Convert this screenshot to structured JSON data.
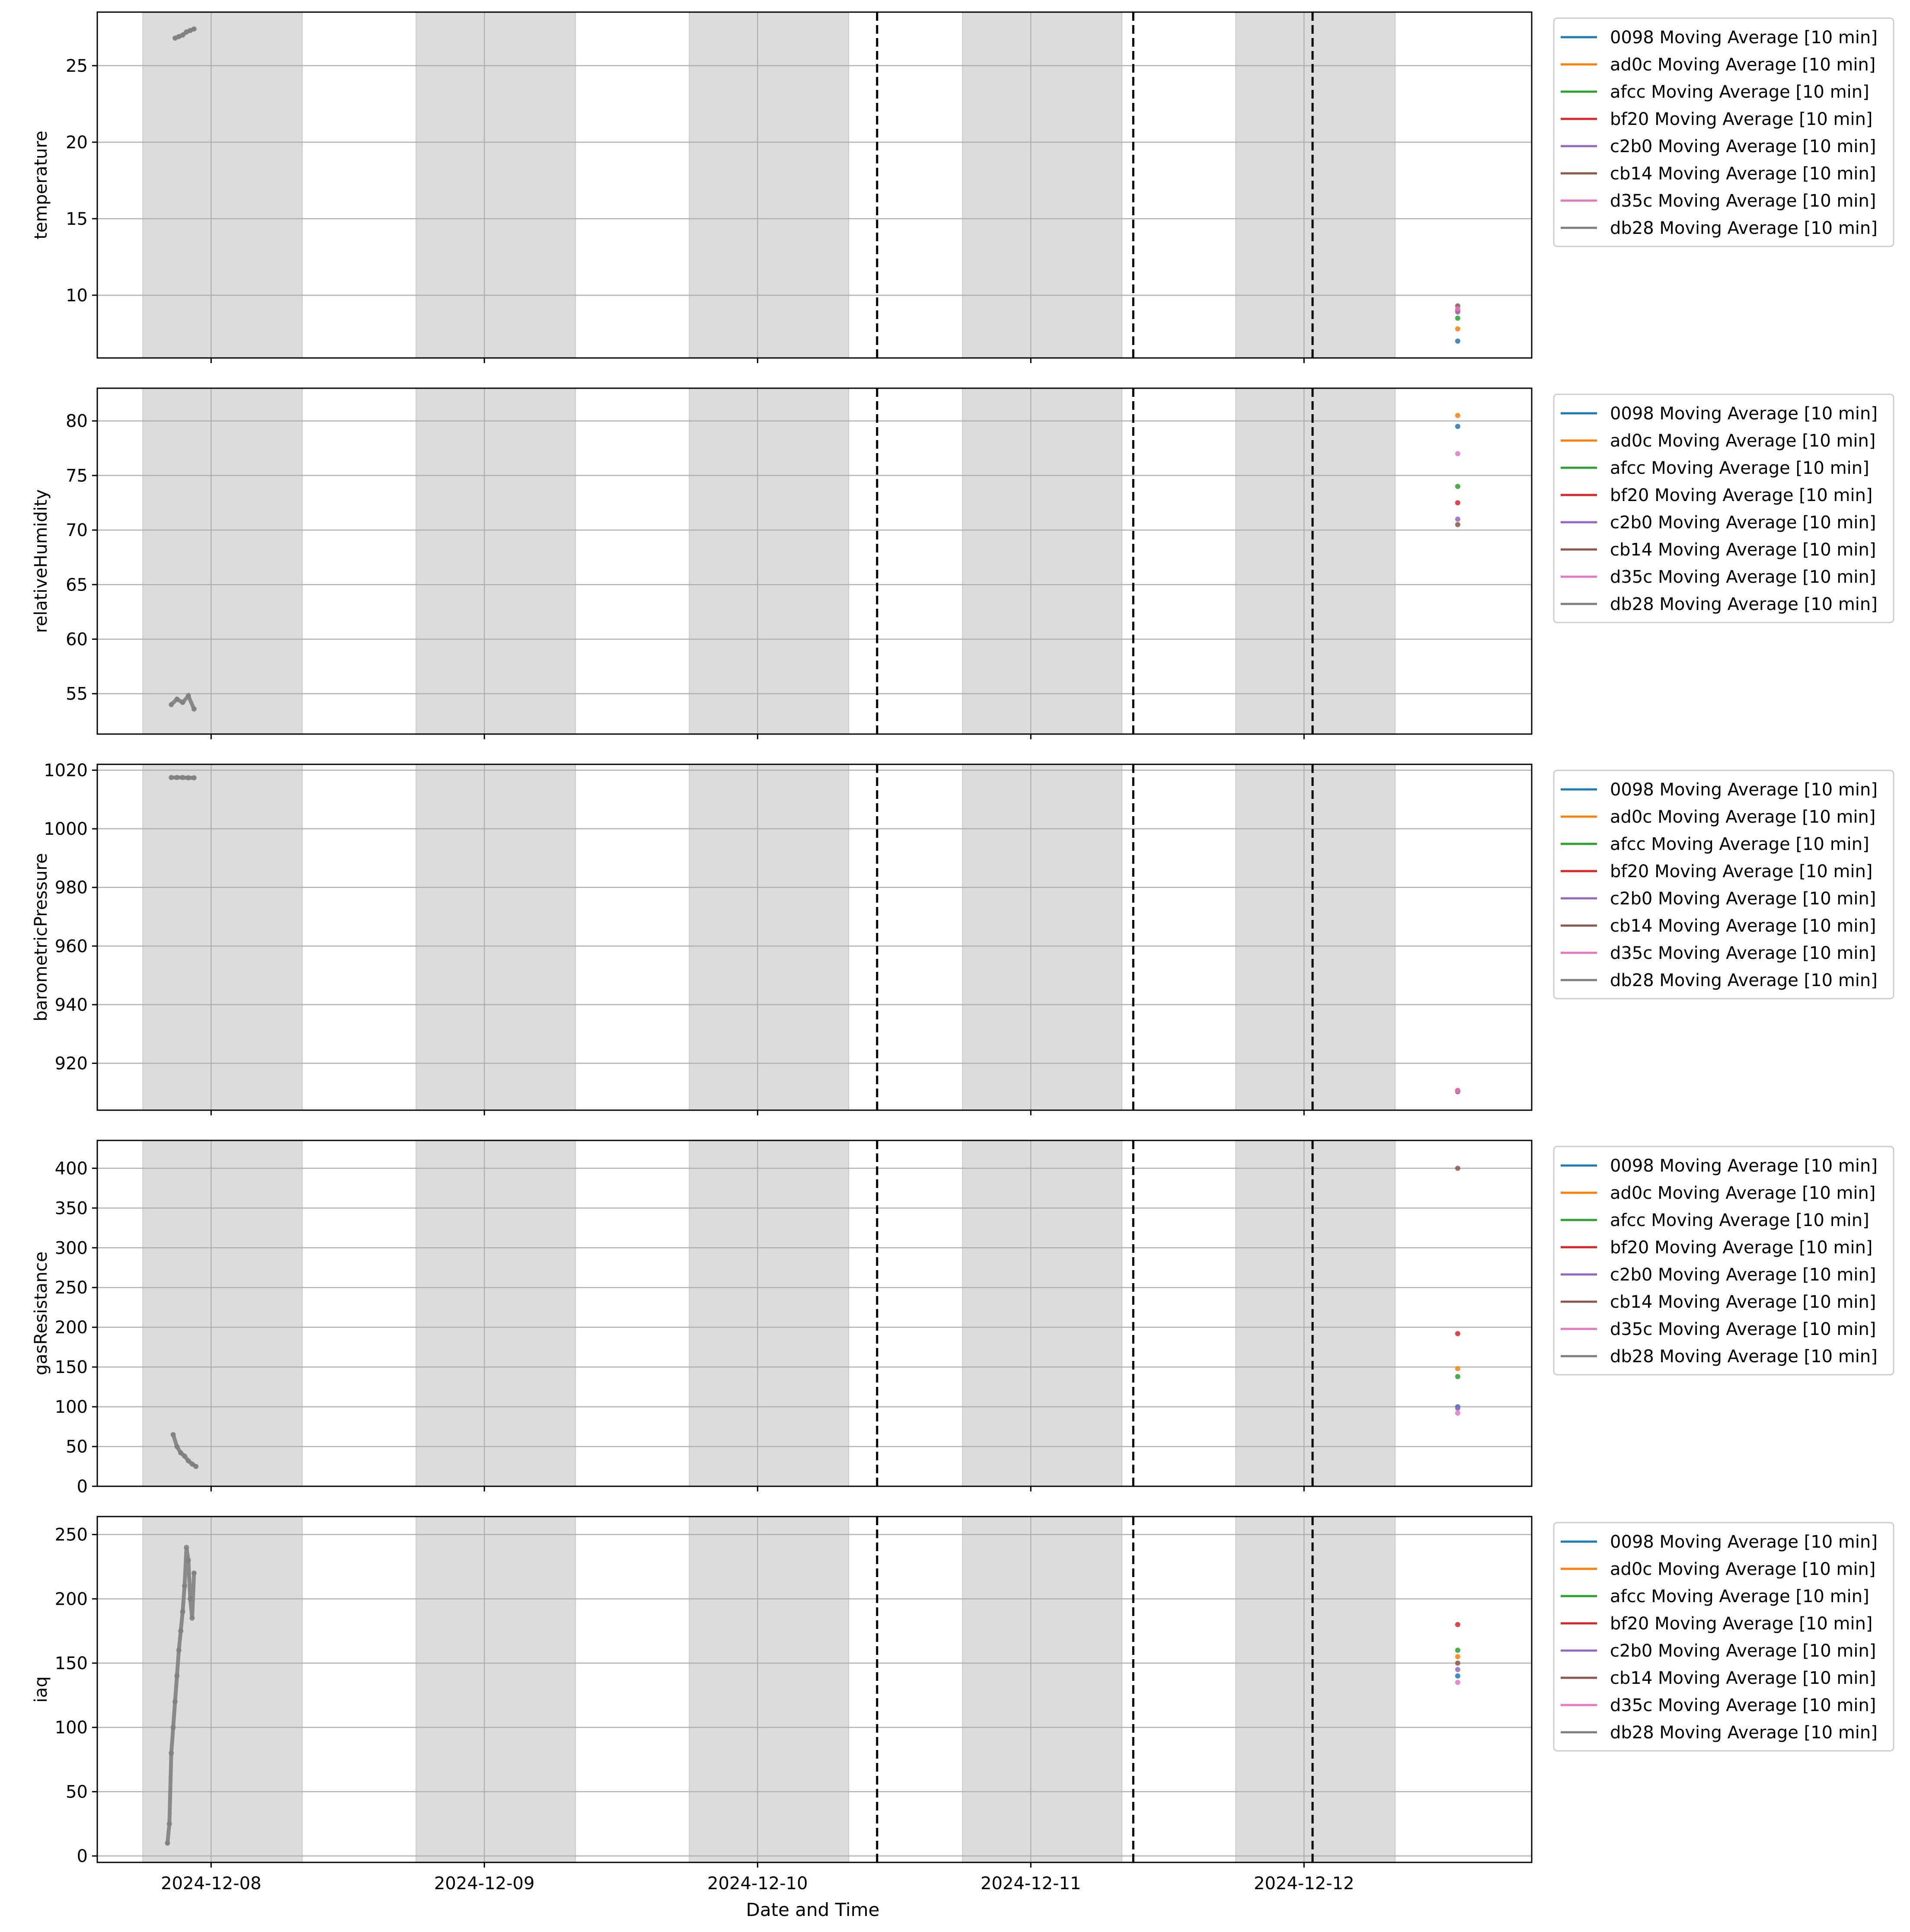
{
  "figure": {
    "xlabel": "Date and Time",
    "x_tick_labels": [
      "2024-12-08",
      "2024-12-09",
      "2024-12-10",
      "2024-12-11",
      "2024-12-12"
    ],
    "x_range": [
      "2024-12-07 14:00",
      "2024-12-12 20:00"
    ],
    "night_spans": [
      [
        "2024-12-07 18:00",
        "2024-12-08 08:00"
      ],
      [
        "2024-12-08 18:00",
        "2024-12-09 08:00"
      ],
      [
        "2024-12-09 18:00",
        "2024-12-10 08:00"
      ],
      [
        "2024-12-10 18:00",
        "2024-12-11 08:00"
      ],
      [
        "2024-12-11 18:00",
        "2024-12-12 08:00"
      ]
    ],
    "event_lines": [
      "2024-12-10 10:30",
      "2024-12-11 09:00",
      "2024-12-12 00:45"
    ],
    "legend_position": "outside upper right",
    "grid": true
  },
  "series_meta": [
    {
      "id": "0098",
      "label": "0098 Moving Average [10 min]",
      "color": "#1f77b4"
    },
    {
      "id": "ad0c",
      "label": "ad0c Moving Average [10 min]",
      "color": "#ff7f0e"
    },
    {
      "id": "afcc",
      "label": "afcc Moving Average [10 min]",
      "color": "#2ca02c"
    },
    {
      "id": "bf20",
      "label": "bf20 Moving Average [10 min]",
      "color": "#d62728"
    },
    {
      "id": "c2b0",
      "label": "c2b0 Moving Average [10 min]",
      "color": "#9467bd"
    },
    {
      "id": "cb14",
      "label": "cb14 Moving Average [10 min]",
      "color": "#8c564b"
    },
    {
      "id": "d35c",
      "label": "d35c Moving Average [10 min]",
      "color": "#e377c2"
    },
    {
      "id": "db28",
      "label": "db28 Moving Average [10 min]",
      "color": "#7f7f7f"
    }
  ],
  "chart_data": [
    {
      "type": "scatter",
      "ylabel": "temperature",
      "ylim": [
        5.9,
        28.5
      ],
      "yticks": [
        10,
        15,
        20,
        25
      ],
      "series": [
        {
          "id": "db28",
          "points": [
            [
              "2024-12-07 20:50",
              26.8
            ],
            [
              "2024-12-07 21:10",
              26.9
            ],
            [
              "2024-12-07 21:30",
              27.0
            ],
            [
              "2024-12-07 21:50",
              27.2
            ],
            [
              "2024-12-07 22:10",
              27.3
            ],
            [
              "2024-12-07 22:30",
              27.4
            ]
          ]
        },
        {
          "id": "0098",
          "points": [
            [
              "2024-12-12 13:30",
              7.0
            ]
          ]
        },
        {
          "id": "ad0c",
          "points": [
            [
              "2024-12-12 13:30",
              7.8
            ]
          ]
        },
        {
          "id": "afcc",
          "points": [
            [
              "2024-12-12 13:30",
              8.5
            ]
          ]
        },
        {
          "id": "bf20",
          "points": [
            [
              "2024-12-12 13:30",
              9.0
            ]
          ]
        },
        {
          "id": "c2b0",
          "points": [
            [
              "2024-12-12 13:30",
              8.9
            ]
          ]
        },
        {
          "id": "cb14",
          "points": [
            [
              "2024-12-12 13:30",
              9.3
            ]
          ]
        },
        {
          "id": "d35c",
          "points": [
            [
              "2024-12-12 13:30",
              9.1
            ]
          ]
        }
      ]
    },
    {
      "type": "scatter",
      "ylabel": "relativeHumidity",
      "ylim": [
        51.3,
        83.0
      ],
      "yticks": [
        55,
        60,
        65,
        70,
        75,
        80
      ],
      "series": [
        {
          "id": "db28",
          "points": [
            [
              "2024-12-07 20:30",
              54.0
            ],
            [
              "2024-12-07 21:00",
              54.5
            ],
            [
              "2024-12-07 21:30",
              54.2
            ],
            [
              "2024-12-07 22:00",
              54.8
            ],
            [
              "2024-12-07 22:30",
              53.6
            ]
          ]
        },
        {
          "id": "0098",
          "points": [
            [
              "2024-12-12 13:30",
              79.5
            ]
          ]
        },
        {
          "id": "ad0c",
          "points": [
            [
              "2024-12-12 13:30",
              80.5
            ]
          ]
        },
        {
          "id": "afcc",
          "points": [
            [
              "2024-12-12 13:30",
              74.0
            ]
          ]
        },
        {
          "id": "bf20",
          "points": [
            [
              "2024-12-12 13:30",
              72.5
            ]
          ]
        },
        {
          "id": "c2b0",
          "points": [
            [
              "2024-12-12 13:30",
              71.0
            ]
          ]
        },
        {
          "id": "cb14",
          "points": [
            [
              "2024-12-12 13:30",
              70.5
            ]
          ]
        },
        {
          "id": "d35c",
          "points": [
            [
              "2024-12-12 13:30",
              77.0
            ]
          ]
        }
      ]
    },
    {
      "type": "scatter",
      "ylabel": "barometricPressure",
      "ylim": [
        904.0,
        1022.0
      ],
      "yticks": [
        920,
        940,
        960,
        980,
        1000,
        1020
      ],
      "series": [
        {
          "id": "db28",
          "points": [
            [
              "2024-12-07 20:30",
              1017.5
            ],
            [
              "2024-12-07 21:00",
              1017.5
            ],
            [
              "2024-12-07 21:30",
              1017.5
            ],
            [
              "2024-12-07 22:00",
              1017.4
            ],
            [
              "2024-12-07 22:30",
              1017.4
            ]
          ]
        },
        {
          "id": "0098",
          "points": [
            [
              "2024-12-12 13:30",
              910.5
            ]
          ]
        },
        {
          "id": "ad0c",
          "points": [
            [
              "2024-12-12 13:30",
              910.6
            ]
          ]
        },
        {
          "id": "afcc",
          "points": [
            [
              "2024-12-12 13:30",
              910.4
            ]
          ]
        },
        {
          "id": "bf20",
          "points": [
            [
              "2024-12-12 13:30",
              910.7
            ]
          ]
        },
        {
          "id": "c2b0",
          "points": [
            [
              "2024-12-12 13:30",
              910.3
            ]
          ]
        },
        {
          "id": "cb14",
          "points": [
            [
              "2024-12-12 13:30",
              910.5
            ]
          ]
        },
        {
          "id": "d35c",
          "points": [
            [
              "2024-12-12 13:30",
              910.6
            ]
          ]
        }
      ]
    },
    {
      "type": "scatter",
      "ylabel": "gasResistance",
      "ylim": [
        0,
        435
      ],
      "yticks": [
        0,
        50,
        100,
        150,
        200,
        250,
        300,
        350,
        400
      ],
      "series": [
        {
          "id": "db28",
          "points": [
            [
              "2024-12-07 20:40",
              65
            ],
            [
              "2024-12-07 21:00",
              50
            ],
            [
              "2024-12-07 21:20",
              42
            ],
            [
              "2024-12-07 21:40",
              38
            ],
            [
              "2024-12-07 22:00",
              32
            ],
            [
              "2024-12-07 22:20",
              28
            ],
            [
              "2024-12-07 22:40",
              25
            ]
          ]
        },
        {
          "id": "0098",
          "points": [
            [
              "2024-12-12 13:30",
              100
            ]
          ]
        },
        {
          "id": "ad0c",
          "points": [
            [
              "2024-12-12 13:30",
              148
            ]
          ]
        },
        {
          "id": "afcc",
          "points": [
            [
              "2024-12-12 13:30",
              138
            ]
          ]
        },
        {
          "id": "bf20",
          "points": [
            [
              "2024-12-12 13:30",
              192
            ]
          ]
        },
        {
          "id": "c2b0",
          "points": [
            [
              "2024-12-12 13:30",
              98
            ]
          ]
        },
        {
          "id": "cb14",
          "points": [
            [
              "2024-12-12 13:30",
              400
            ]
          ]
        },
        {
          "id": "d35c",
          "points": [
            [
              "2024-12-12 13:30",
              92
            ]
          ]
        }
      ]
    },
    {
      "type": "scatter",
      "ylabel": "iaq",
      "ylim": [
        -5,
        264
      ],
      "yticks": [
        0,
        50,
        100,
        150,
        200,
        250
      ],
      "series": [
        {
          "id": "db28",
          "points": [
            [
              "2024-12-07 20:10",
              10
            ],
            [
              "2024-12-07 20:20",
              25
            ],
            [
              "2024-12-07 20:30",
              80
            ],
            [
              "2024-12-07 20:40",
              100
            ],
            [
              "2024-12-07 20:50",
              120
            ],
            [
              "2024-12-07 21:00",
              140
            ],
            [
              "2024-12-07 21:10",
              160
            ],
            [
              "2024-12-07 21:20",
              175
            ],
            [
              "2024-12-07 21:30",
              190
            ],
            [
              "2024-12-07 21:40",
              210
            ],
            [
              "2024-12-07 21:50",
              240
            ],
            [
              "2024-12-07 22:00",
              230
            ],
            [
              "2024-12-07 22:10",
              200
            ],
            [
              "2024-12-07 22:20",
              185
            ],
            [
              "2024-12-07 22:30",
              220
            ]
          ]
        },
        {
          "id": "0098",
          "points": [
            [
              "2024-12-12 13:30",
              140
            ]
          ]
        },
        {
          "id": "ad0c",
          "points": [
            [
              "2024-12-12 13:30",
              155
            ]
          ]
        },
        {
          "id": "afcc",
          "points": [
            [
              "2024-12-12 13:30",
              160
            ]
          ]
        },
        {
          "id": "bf20",
          "points": [
            [
              "2024-12-12 13:30",
              180
            ]
          ]
        },
        {
          "id": "c2b0",
          "points": [
            [
              "2024-12-12 13:30",
              145
            ]
          ]
        },
        {
          "id": "cb14",
          "points": [
            [
              "2024-12-12 13:30",
              150
            ]
          ]
        },
        {
          "id": "d35c",
          "points": [
            [
              "2024-12-12 13:30",
              135
            ]
          ]
        }
      ]
    }
  ]
}
